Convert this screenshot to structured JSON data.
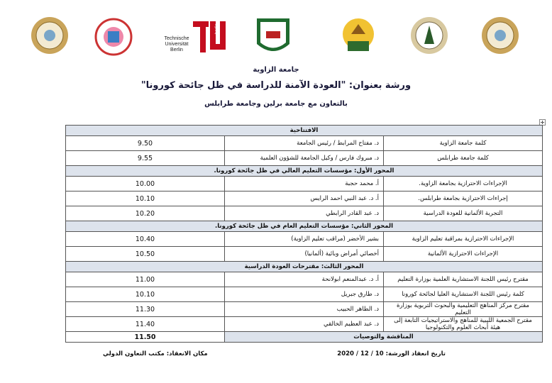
{
  "logos": {
    "tu_berlin": {
      "name_lines": [
        "Technische",
        "Universität",
        "Berlin"
      ],
      "mark": "berlin"
    }
  },
  "header": {
    "university": "جامعة الزاوية",
    "title": "ورشة بعنوان: \"العودة الآمنة للدراسة في ظل جائحة كورونا\"",
    "subtitle": "بالتعاون مع جامعة برلين وجامعة طرابلس"
  },
  "table": {
    "rows": [
      {
        "heading": "الافتتاحية"
      },
      {
        "topic": "كلمة جامعة الزاوية",
        "speaker": "د. مفتاح المرابط / رئيس الجامعة",
        "time": "9.50"
      },
      {
        "topic": "كلمة جامعة طرابلس",
        "speaker": "د. مبروك فارس / وكيل الجامعة للشؤون العلمية",
        "time": "9.55"
      },
      {
        "heading": "المحور الأول: مؤسسات التعليم العالي في ظل جائحة كورونا."
      },
      {
        "topic": "الإجراءات الاحترازية بجامعة الزاوية.",
        "speaker": "أ. محمد حجبة",
        "time": "10.00"
      },
      {
        "topic": "إجراءات الاحترازية بجامعة طرابلس.",
        "speaker": "أ. د. عبد النبي احمد الرايس",
        "time": "10.10"
      },
      {
        "topic": "التجربة الألمانية للعودة الدراسية",
        "speaker": "د. عبد القادر الرابطي",
        "time": "10.20"
      },
      {
        "heading": "المحور الثاني: مؤسسات التعليم العام في ظل جائحة كورونا."
      },
      {
        "topic": "الإجراءات الاحترازية بمراقبة تعليم الزاوية",
        "speaker": "بشير الأخضر (مراقب تعليم الزاوية)",
        "time": "10.40"
      },
      {
        "topic": "الإجراءات الاحترازية الألمانية",
        "speaker": "أخصائي أمراض وبائية (ألمانيا)",
        "time": "10.50"
      },
      {
        "heading": "المحور الثالث: مقترحات العودة الدراسية"
      },
      {
        "topic": "مقترح رئيس اللجنة الاستشارية العلمية بوزارة التعليم",
        "speaker": "أ. د. عبدالمنعم ابولانحة",
        "time": "11.00"
      },
      {
        "topic": "كلمة رئيس اللجنة الاستشارية العليا لجائحة كورونا",
        "speaker": "د. طارق جبريل",
        "time": "10.10"
      },
      {
        "topic": "مقترح مركز المناهج التعليمية والبحوث التربوية بوزارة التعليم",
        "speaker": "د. الطاهر الحبيب",
        "time": "11.30"
      },
      {
        "topic": "مقترح الجمعية الليبية للمناهج والاستراتيجيات التابعة إلى هيئة أبحاث العلوم والتكنولوجيا",
        "speaker": "د. عبد العظيم الخالقي",
        "time": "11.40"
      },
      {
        "heading": "المناقشة والتوصيات",
        "time": "11.50"
      }
    ]
  },
  "footer": {
    "date": "تاريخ انعقاد الورشة: 10 / 12 / 2020",
    "venue": "مكان الانعقاد: مكتب التعاون الدولي"
  }
}
